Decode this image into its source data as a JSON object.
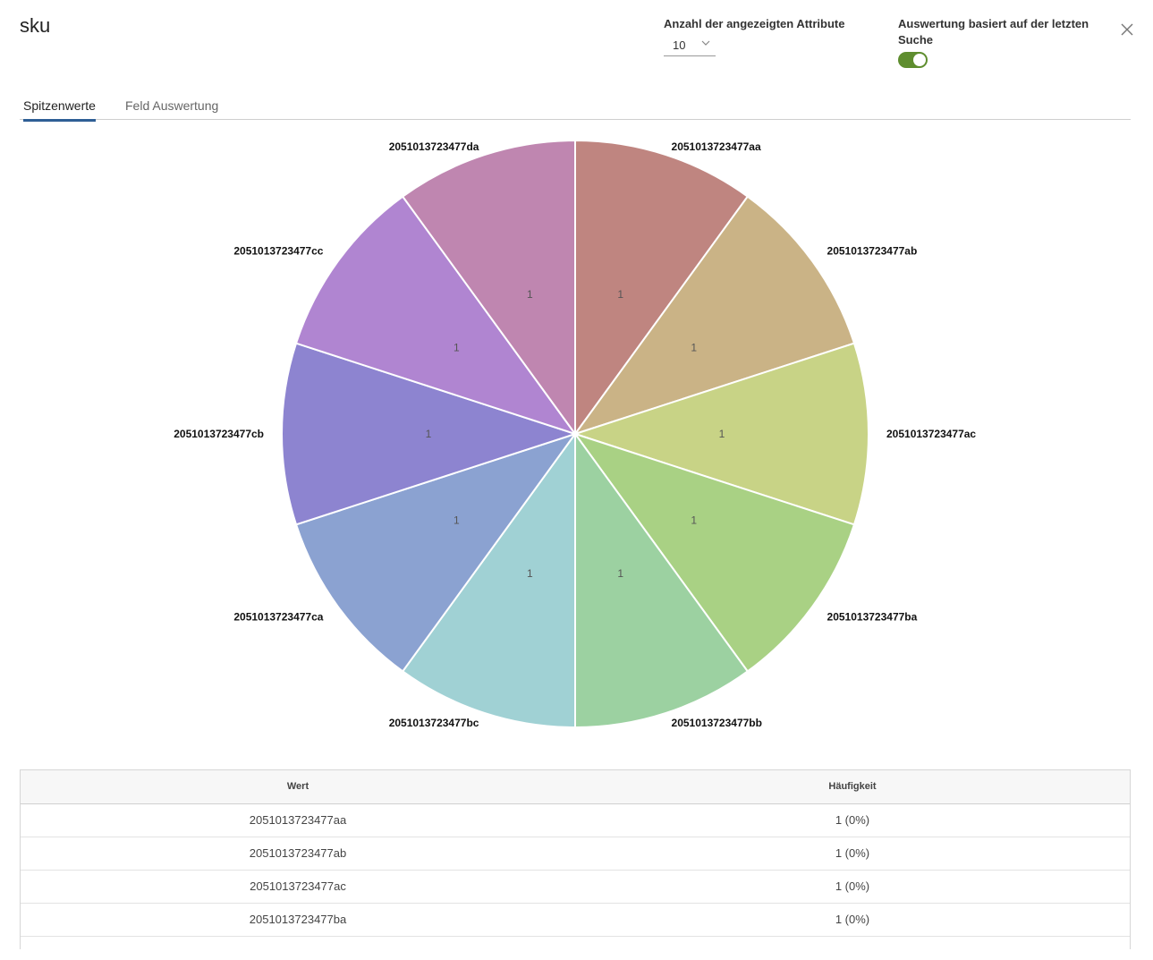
{
  "header": {
    "title": "sku",
    "attrs_label": "Anzahl der angezeigten Attribute",
    "attrs_value": "10",
    "eval_label": "Auswertung basiert auf der letzten Suche",
    "eval_toggle_on": true
  },
  "tabs": [
    {
      "label": "Spitzenwerte",
      "active": true
    },
    {
      "label": "Feld Auswertung",
      "active": false
    }
  ],
  "chart_data": {
    "type": "pie",
    "categories": [
      "2051013723477aa",
      "2051013723477ab",
      "2051013723477ac",
      "2051013723477ba",
      "2051013723477bb",
      "2051013723477bc",
      "2051013723477ca",
      "2051013723477cb",
      "2051013723477cc",
      "2051013723477da"
    ],
    "values": [
      1,
      1,
      1,
      1,
      1,
      1,
      1,
      1,
      1,
      1
    ],
    "colors": [
      "#bf8580",
      "#cab386",
      "#c8d386",
      "#a9d184",
      "#9cd1a1",
      "#a0d1d4",
      "#8ba2d1",
      "#8d84d0",
      "#b085d1",
      "#bf86b0"
    ]
  },
  "table": {
    "columns": [
      "Wert",
      "Häufigkeit"
    ],
    "rows": [
      [
        "2051013723477aa",
        "1 (0%)"
      ],
      [
        "2051013723477ab",
        "1 (0%)"
      ],
      [
        "2051013723477ac",
        "1 (0%)"
      ],
      [
        "2051013723477ba",
        "1 (0%)"
      ]
    ]
  }
}
